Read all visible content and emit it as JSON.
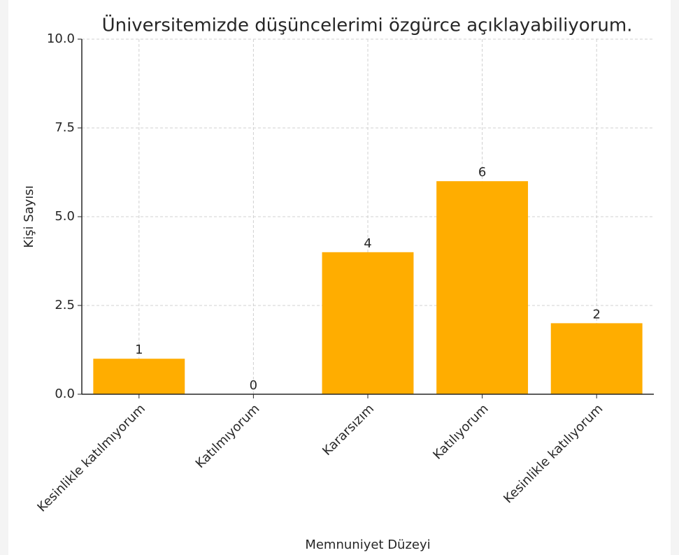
{
  "chart_data": {
    "type": "bar",
    "title": "Üniversitemizde düşüncelerimi özgürce açıklayabiliyorum.",
    "x_label": "Memnuniyet Düzeyi",
    "y_label": "Kişi Sayısı",
    "categories": [
      "Kesinlikle katılmıyorum",
      "Katılmıyorum",
      "Kararsızım",
      "Katılıyorum",
      "Kesinlikle katılıyorum"
    ],
    "values": [
      1,
      0,
      4,
      6,
      2
    ],
    "color": "#ffad00",
    "ylim": [
      0,
      10
    ],
    "yticks": [
      {
        "value": 0,
        "label": "0.0"
      },
      {
        "value": 2.5,
        "label": "2.5"
      },
      {
        "value": 5,
        "label": "5.0"
      },
      {
        "value": 7.5,
        "label": "7.5"
      },
      {
        "value": 10,
        "label": "10.0"
      }
    ],
    "grid": true
  }
}
